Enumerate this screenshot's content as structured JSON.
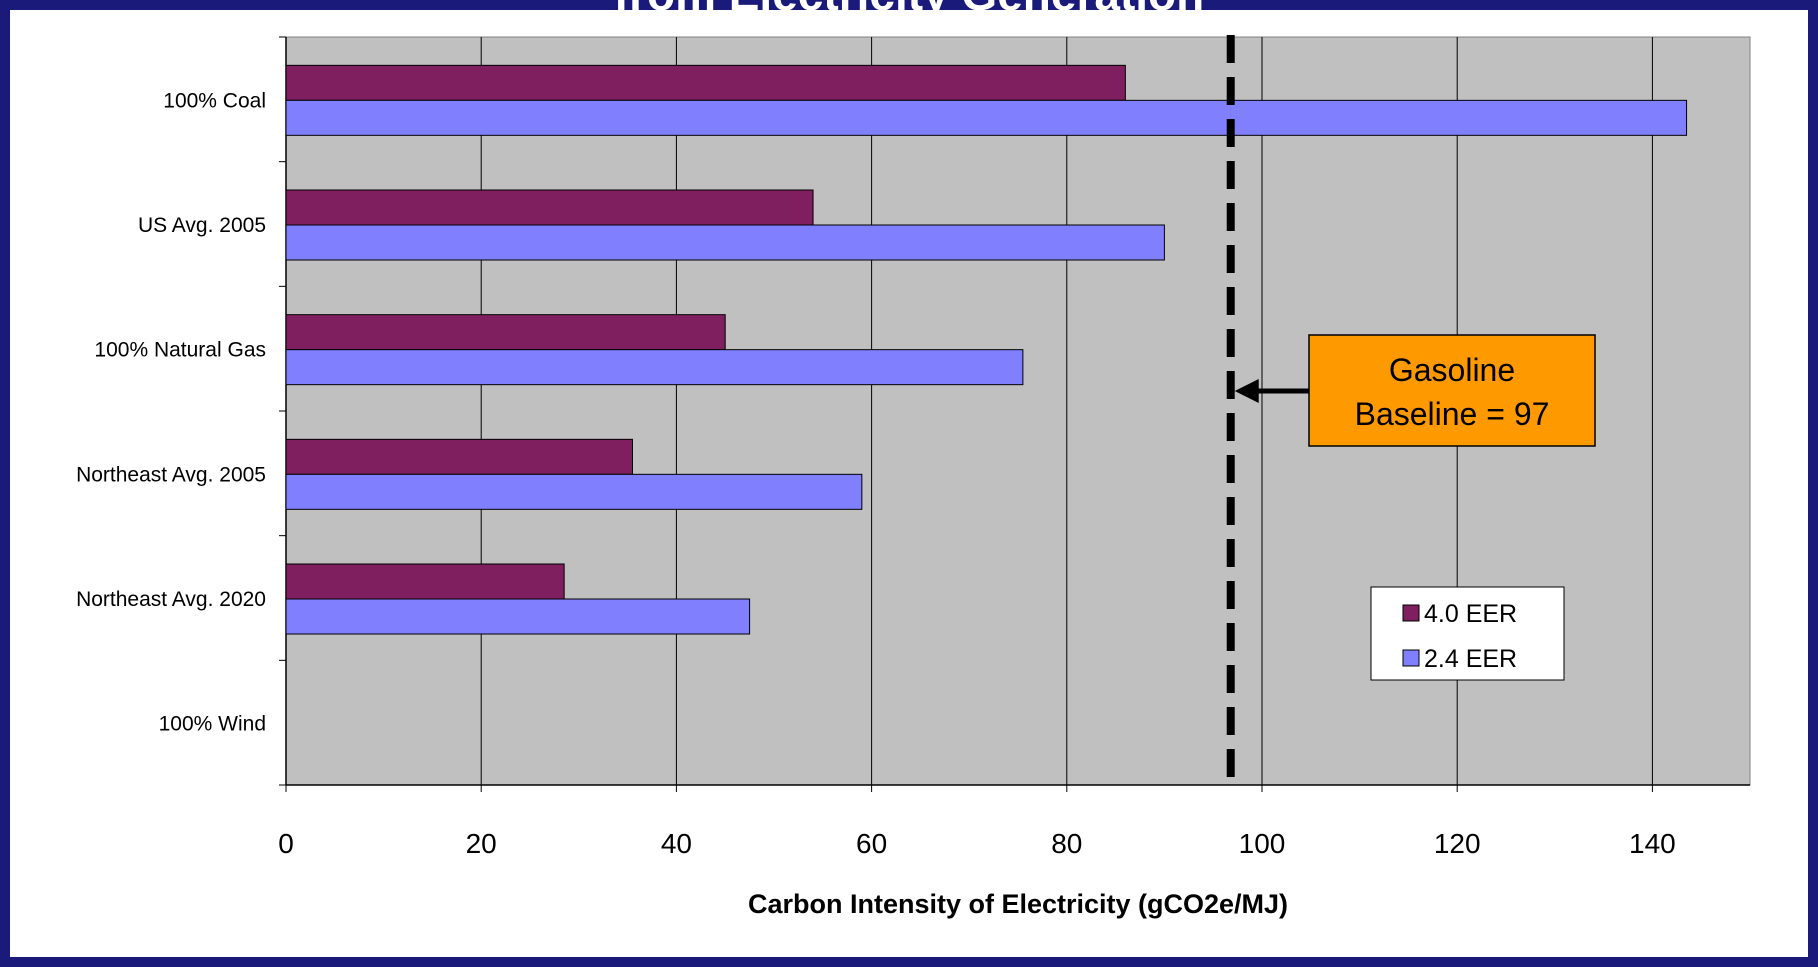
{
  "chart_data": {
    "type": "bar",
    "orientation": "horizontal",
    "title": "from Electricity Generation",
    "categories": [
      "100% Coal",
      "US Avg. 2005",
      "100% Natural Gas",
      "Northeast Avg. 2005",
      "Northeast Avg. 2020",
      "100% Wind"
    ],
    "series": [
      {
        "name": "4.0 EER",
        "color": "#7f1f5f",
        "values": [
          86,
          54,
          45,
          35.5,
          28.5,
          0
        ]
      },
      {
        "name": "2.4 EER",
        "color": "#8080ff",
        "values": [
          143.5,
          90,
          75.5,
          59,
          47.5,
          0
        ]
      }
    ],
    "xlabel": "Carbon Intensity of Electricity (gCO2e/MJ)",
    "ylabel": "",
    "xlim": [
      0,
      150
    ],
    "xticks": [
      0,
      20,
      40,
      60,
      80,
      100,
      120,
      140
    ],
    "grid": true,
    "plot_background": "#c0c0c0",
    "legend_position": "lower-right",
    "reference_line": {
      "value": 97,
      "style": "dashed",
      "color": "#000000"
    },
    "annotation": {
      "lines": [
        "Gasoline",
        "Baseline = 97"
      ],
      "background": "#ff9900"
    }
  }
}
